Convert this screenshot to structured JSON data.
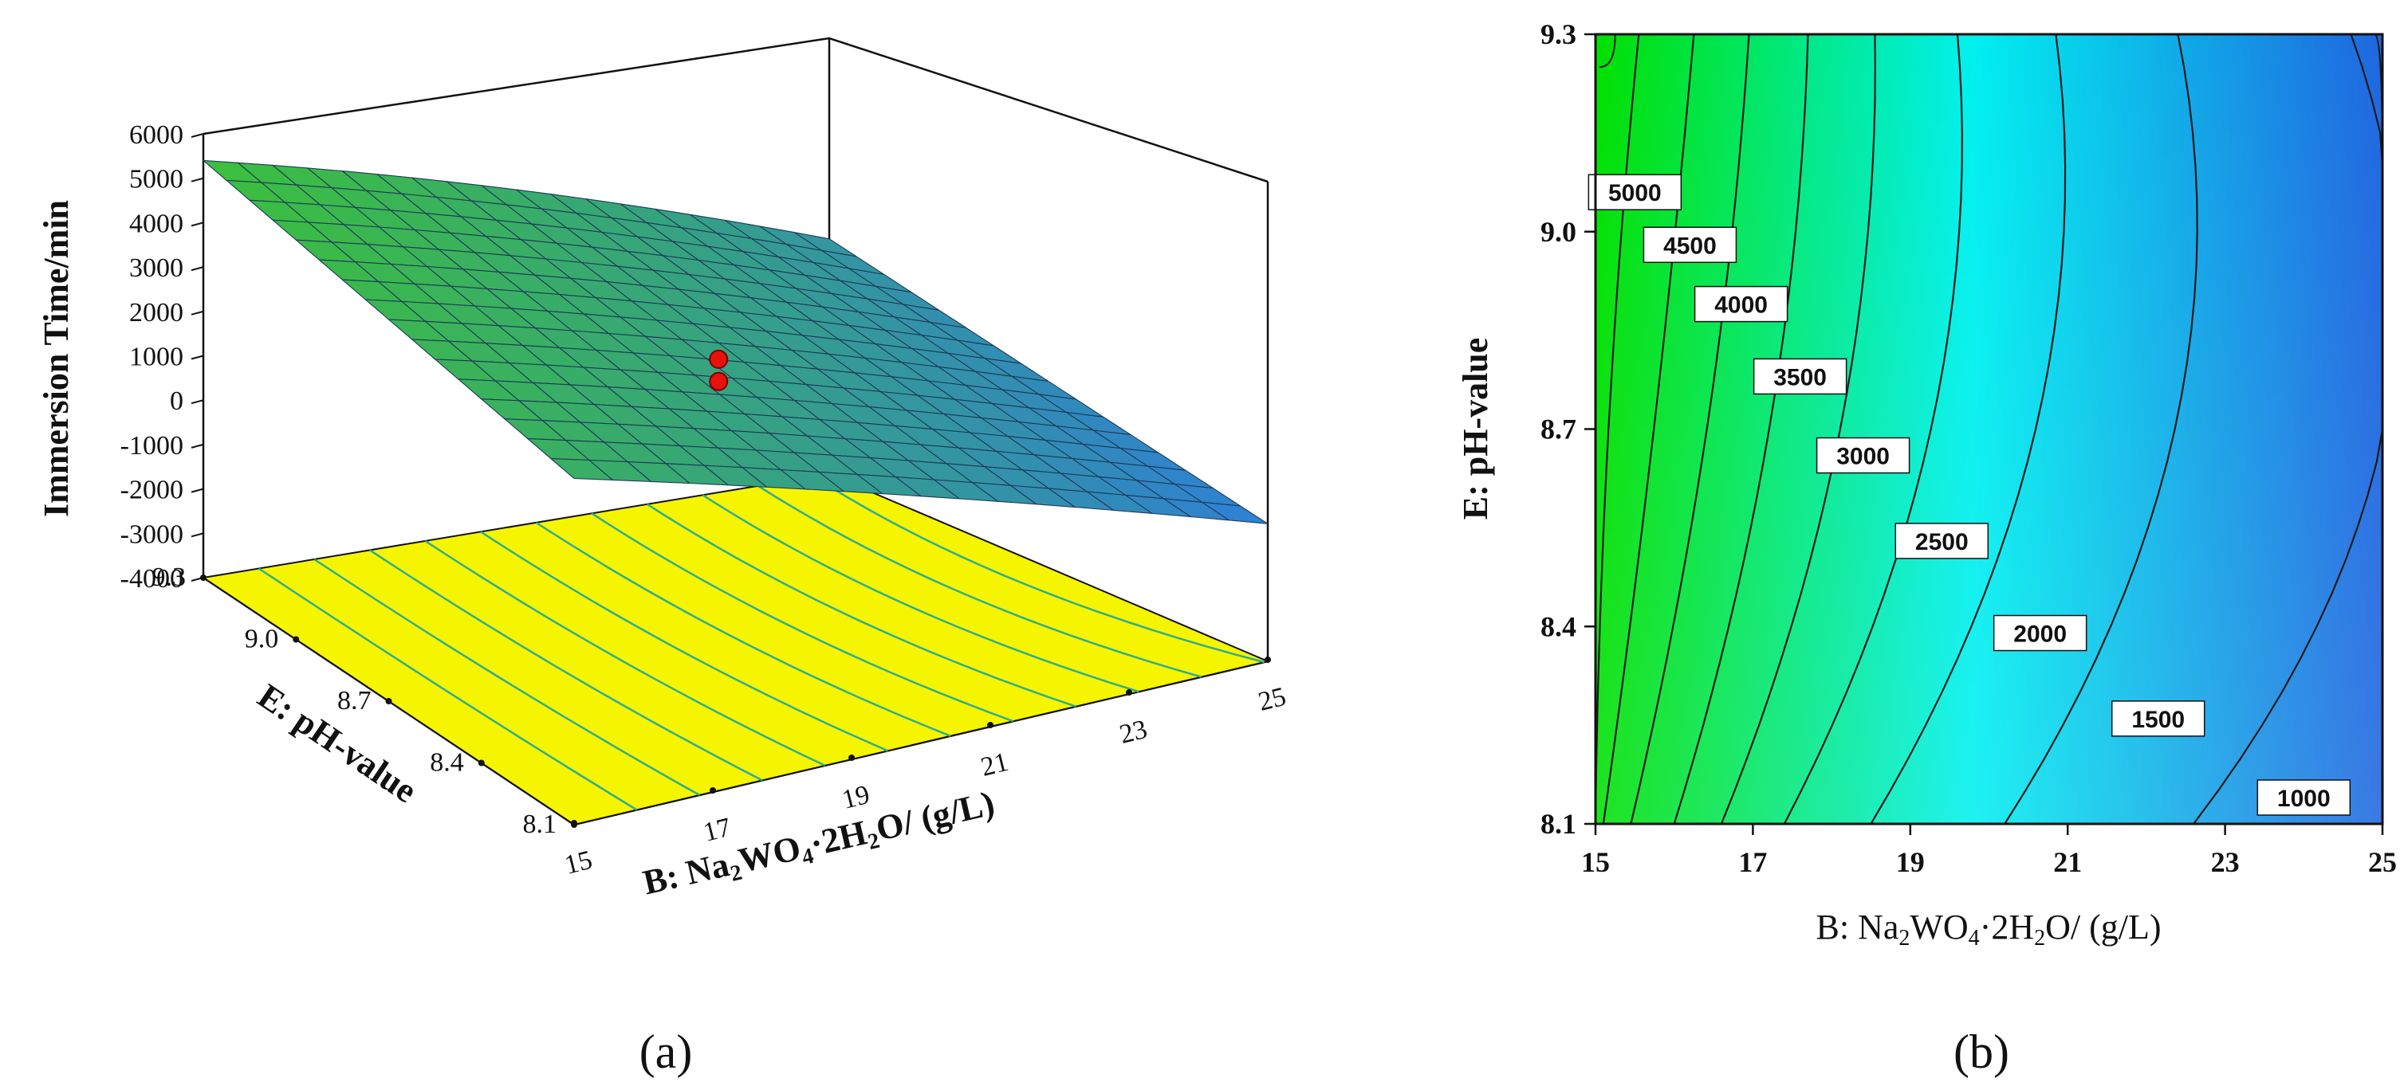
{
  "chart_data": [
    {
      "type": "surface3d",
      "panel_label": "(a)",
      "title": "",
      "zlabel": "Immersion Time/min",
      "xlabel_prefix": "B: Na",
      "xlabel_sub1": "2",
      "xlabel_mid1": "WO",
      "xlabel_sub2": "4",
      "xlabel_mid2": "·2H",
      "xlabel_sub3": "2",
      "xlabel_suffix": "O/ (g/L)",
      "ylabel": "E: pH-value",
      "x_ticks": [
        "15",
        "17",
        "19",
        "21",
        "23",
        "25"
      ],
      "y_ticks": [
        "8.1",
        "8.4",
        "8.7",
        "9.0",
        "9.3"
      ],
      "z_ticks": [
        "-4000",
        "-3000",
        "-2000",
        "-1000",
        "0",
        "1000",
        "2000",
        "3000",
        "4000",
        "5000",
        "6000"
      ],
      "xlim": [
        15,
        25
      ],
      "ylim": [
        8.1,
        9.3
      ],
      "zlim": [
        -4000,
        6000
      ],
      "corner_values": {
        "x15_y9.3": 5400,
        "x25_y9.3": 1300,
        "x15_y8.1": 3800,
        "x25_y8.1": -900
      },
      "design_points": [
        {
          "x": 20,
          "y": 8.7,
          "z": 2200
        },
        {
          "x": 20,
          "y": 8.7,
          "z": 1700
        }
      ],
      "surface_color_high": "#3cbf3c",
      "surface_color_low": "#2f7fd6",
      "floor_color": "#f5f500",
      "floor_contour_color": "#2fae8a",
      "point_color": "#e8120c"
    },
    {
      "type": "contour",
      "panel_label": "(b)",
      "title": "",
      "xlabel_prefix": "B: Na",
      "xlabel_sub1": "2",
      "xlabel_mid1": "WO",
      "xlabel_sub2": "4",
      "xlabel_mid2": "·2H",
      "xlabel_sub3": "2",
      "xlabel_suffix": "O/ (g/L)",
      "ylabel": "E: pH-value",
      "x_ticks": [
        "15",
        "17",
        "19",
        "21",
        "23",
        "25"
      ],
      "y_ticks": [
        "8.1",
        "8.4",
        "8.7",
        "9.0",
        "9.3"
      ],
      "xlim": [
        15,
        25
      ],
      "ylim": [
        8.1,
        9.3
      ],
      "contour_levels": [
        1000,
        1500,
        2000,
        2500,
        3000,
        3500,
        4000,
        4500,
        5000
      ],
      "contour_labels": [
        {
          "text": "5000",
          "x": 15.5,
          "y": 9.06
        },
        {
          "text": "4500",
          "x": 16.2,
          "y": 8.98
        },
        {
          "text": "4000",
          "x": 16.85,
          "y": 8.89
        },
        {
          "text": "3500",
          "x": 17.6,
          "y": 8.78
        },
        {
          "text": "3000",
          "x": 18.4,
          "y": 8.66
        },
        {
          "text": "2500",
          "x": 19.4,
          "y": 8.53
        },
        {
          "text": "2000",
          "x": 20.65,
          "y": 8.39
        },
        {
          "text": "1500",
          "x": 22.15,
          "y": 8.26
        },
        {
          "text": "1000",
          "x": 24.0,
          "y": 8.14
        }
      ],
      "colormap": [
        "#00e000",
        "#00f0f0",
        "#1f66e0"
      ]
    }
  ]
}
